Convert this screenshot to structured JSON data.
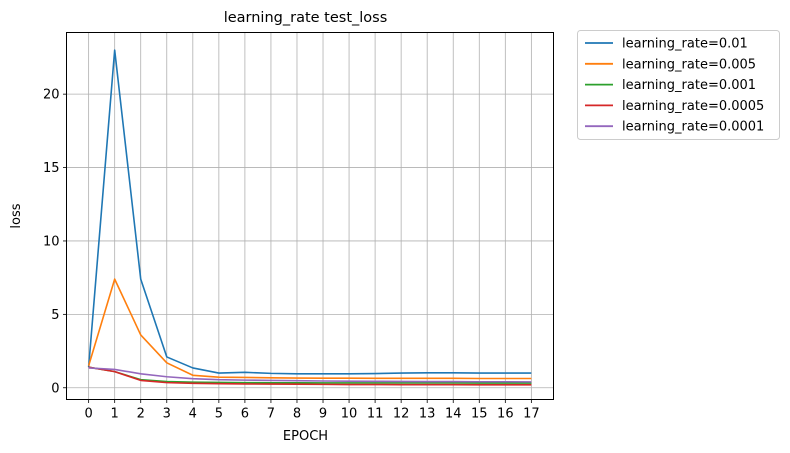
{
  "chart_data": {
    "type": "line",
    "title": "learning_rate test_loss",
    "xlabel": "EPOCH",
    "ylabel": "loss",
    "x": [
      0,
      1,
      2,
      3,
      4,
      5,
      6,
      7,
      8,
      9,
      10,
      11,
      12,
      13,
      14,
      15,
      16,
      17
    ],
    "x_ticks": [
      "0",
      "1",
      "2",
      "3",
      "4",
      "5",
      "6",
      "7",
      "8",
      "9",
      "10",
      "11",
      "12",
      "13",
      "14",
      "15",
      "16",
      "17"
    ],
    "y_ticks": [
      "0",
      "5",
      "10",
      "15",
      "20"
    ],
    "xlim": [
      -0.85,
      17.85
    ],
    "ylim": [
      -0.8,
      24.2
    ],
    "grid": true,
    "legend_position": "outside-upper-right",
    "series": [
      {
        "name": "learning_rate=0.01",
        "color": "#1f77b4",
        "values": [
          1.4,
          23.0,
          7.4,
          2.1,
          1.35,
          1.0,
          1.05,
          0.98,
          0.95,
          0.95,
          0.95,
          0.97,
          1.0,
          1.02,
          1.02,
          1.0,
          1.0,
          1.0
        ]
      },
      {
        "name": "learning_rate=0.005",
        "color": "#ff7f0e",
        "values": [
          1.5,
          7.4,
          3.6,
          1.7,
          0.85,
          0.72,
          0.7,
          0.68,
          0.66,
          0.65,
          0.65,
          0.64,
          0.64,
          0.64,
          0.64,
          0.63,
          0.63,
          0.63
        ]
      },
      {
        "name": "learning_rate=0.001",
        "color": "#2ca02c",
        "values": [
          1.4,
          1.1,
          0.55,
          0.42,
          0.38,
          0.36,
          0.35,
          0.34,
          0.34,
          0.33,
          0.33,
          0.33,
          0.33,
          0.33,
          0.33,
          0.32,
          0.32,
          0.32
        ]
      },
      {
        "name": "learning_rate=0.0005",
        "color": "#d62728",
        "values": [
          1.4,
          1.1,
          0.5,
          0.35,
          0.3,
          0.28,
          0.26,
          0.25,
          0.24,
          0.23,
          0.22,
          0.22,
          0.21,
          0.21,
          0.21,
          0.2,
          0.2,
          0.2
        ]
      },
      {
        "name": "learning_rate=0.0001",
        "color": "#9467bd",
        "values": [
          1.35,
          1.25,
          0.95,
          0.75,
          0.62,
          0.55,
          0.52,
          0.5,
          0.48,
          0.46,
          0.45,
          0.44,
          0.43,
          0.42,
          0.42,
          0.41,
          0.41,
          0.4
        ]
      }
    ]
  }
}
